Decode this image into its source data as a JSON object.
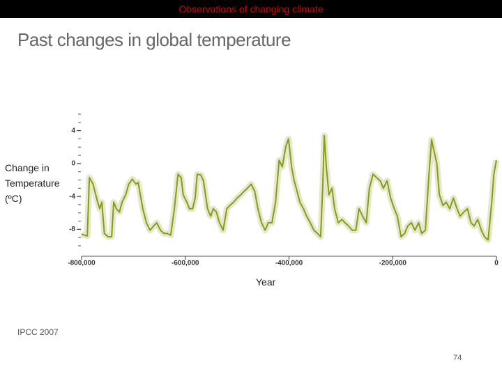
{
  "header": "Observations of changing climate",
  "title": "Past changes in global temperature",
  "source": "IPCC 2007",
  "page_number": "74",
  "chart_data": {
    "type": "line",
    "y_label": "Change in Temperature (ºC)",
    "x_label": "Year",
    "xlim": [
      -800000,
      0
    ],
    "xticks": [
      {
        "value": -800000,
        "label": "-800,000"
      },
      {
        "value": -600000,
        "label": "-600,000"
      },
      {
        "value": -400000,
        "label": "-400,000"
      },
      {
        "value": -200000,
        "label": "-200,000"
      },
      0
    ],
    "ylim": [
      -10,
      6
    ],
    "yticks": [
      4,
      0,
      -4,
      -8
    ],
    "series": [
      {
        "color": "#8a9a1a",
        "x": [
          -800000,
          -789000,
          -785000,
          -778000,
          -769000,
          -765000,
          -761000,
          -756000,
          -749000,
          -742000,
          -738000,
          -733000,
          -727000,
          -722000,
          -715000,
          -709000,
          -702000,
          -695000,
          -691000,
          -682000,
          -675000,
          -668000,
          -661000,
          -655000,
          -648000,
          -641000,
          -635000,
          -628000,
          -621000,
          -614000,
          -608000,
          -604000,
          -597000,
          -592000,
          -586000,
          -581000,
          -577000,
          -570000,
          -565000,
          -557000,
          -551000,
          -546000,
          -540000,
          -534000,
          -527000,
          -520000,
          -514000,
          -507000,
          -500000,
          -493000,
          -487000,
          -480000,
          -473000,
          -466000,
          -460000,
          -453000,
          -446000,
          -440000,
          -433000,
          -426000,
          -419000,
          -413000,
          -406000,
          -401000,
          -395000,
          -390000,
          -386000,
          -379000,
          -372000,
          -366000,
          -359000,
          -352000,
          -345000,
          -339000,
          -335000,
          -332000,
          -328000,
          -323000,
          -317000,
          -312000,
          -305000,
          -298000,
          -292000,
          -285000,
          -278000,
          -271000,
          -265000,
          -258000,
          -251000,
          -245000,
          -238000,
          -231000,
          -224000,
          -218000,
          -211000,
          -204000,
          -197000,
          -191000,
          -184000,
          -177000,
          -171000,
          -164000,
          -157000,
          -150000,
          -144000,
          -137000,
          -130000,
          -125000,
          -121000,
          -115000,
          -110000,
          -103000,
          -97000,
          -90000,
          -83000,
          -76000,
          -70000,
          -63000,
          -56000,
          -49000,
          -43000,
          -36000,
          -29000,
          -23000,
          -16000,
          -9000,
          -5000,
          0
        ],
        "values": [
          -8.6,
          -8.8,
          -1.7,
          -2.5,
          -4.7,
          -5.5,
          -4.7,
          -8.5,
          -8.9,
          -8.9,
          -4.7,
          -5.5,
          -5.9,
          -4.7,
          -3.8,
          -2.5,
          -1.9,
          -2.5,
          -2.3,
          -5.5,
          -7.2,
          -8.1,
          -7.6,
          -7.2,
          -8.1,
          -8.5,
          -8.5,
          -8.7,
          -5.5,
          -1.3,
          -1.7,
          -3.8,
          -4.7,
          -5.5,
          -5.5,
          -4.2,
          -1.3,
          -1.4,
          -2.1,
          -5.5,
          -6.4,
          -5.5,
          -5.9,
          -7.2,
          -8.1,
          -5.5,
          -5.1,
          -4.7,
          -4.2,
          -3.8,
          -3.4,
          -3.0,
          -2.5,
          -3.4,
          -5.5,
          -7.2,
          -8.1,
          -7.2,
          -7.2,
          -4.7,
          0.4,
          -0.4,
          2.1,
          3.0,
          -0.4,
          -2.1,
          -3.0,
          -4.7,
          -5.5,
          -6.4,
          -7.2,
          -8.1,
          -8.5,
          -8.9,
          -3.0,
          3.4,
          -0.4,
          -3.8,
          -3.0,
          -5.5,
          -7.2,
          -6.8,
          -7.2,
          -7.6,
          -8.1,
          -8.1,
          -5.5,
          -6.4,
          -7.2,
          -3.0,
          -1.3,
          -1.7,
          -2.1,
          -3.0,
          -2.1,
          -4.2,
          -5.5,
          -6.4,
          -8.9,
          -8.5,
          -7.6,
          -7.2,
          -8.1,
          -7.2,
          -8.5,
          -8.1,
          -1.3,
          2.9,
          1.7,
          0.0,
          -3.8,
          -5.1,
          -4.7,
          -5.5,
          -4.2,
          -5.5,
          -6.4,
          -5.9,
          -5.5,
          -7.2,
          -7.6,
          -6.8,
          -8.1,
          -8.9,
          -9.3,
          -4.7,
          -1.3,
          0.4
        ]
      }
    ]
  }
}
